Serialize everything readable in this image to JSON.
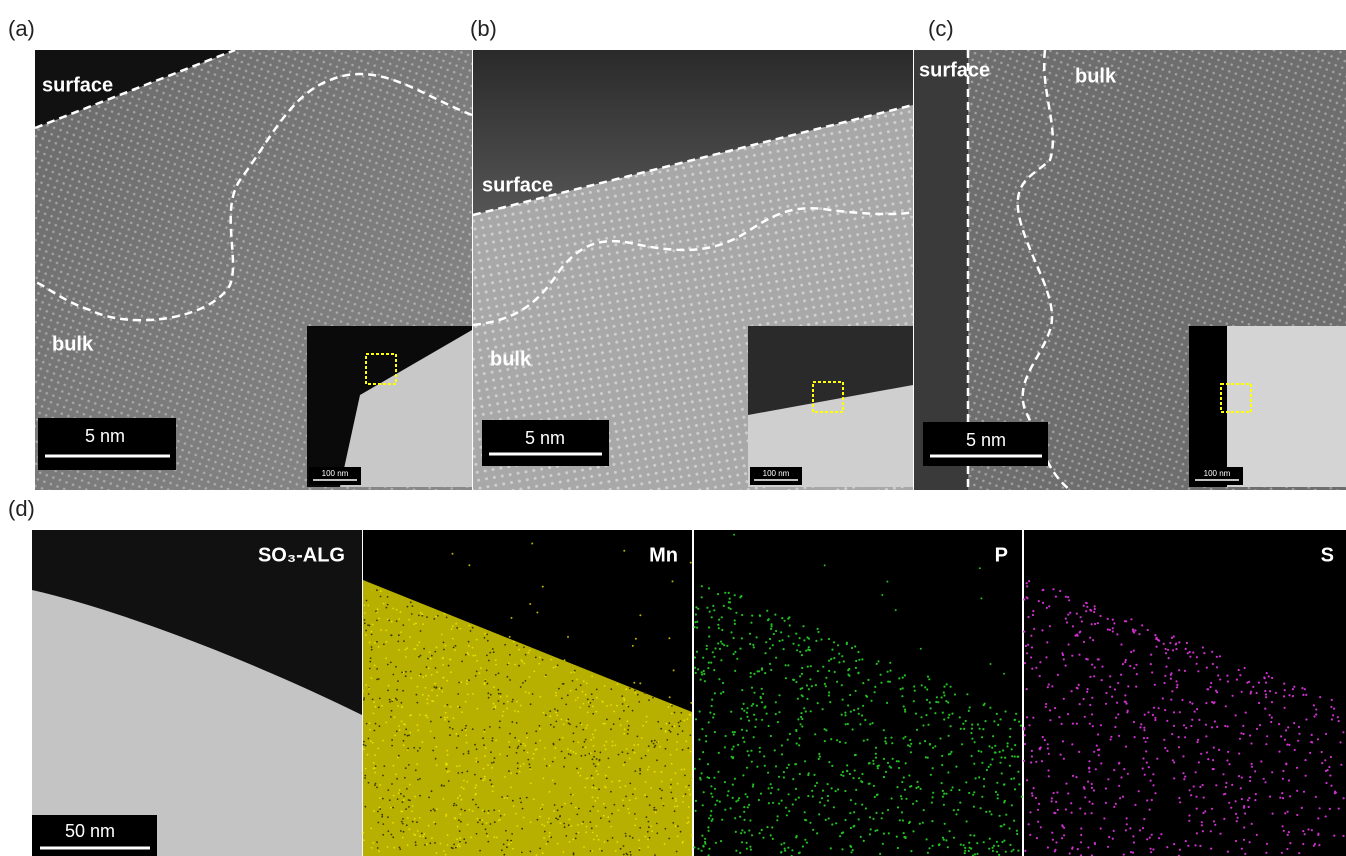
{
  "panels": [
    {
      "label": "(a)",
      "surface": "surface",
      "bulk": "bulk",
      "scale_bar": "5 nm",
      "inset_scale_bar": "100 nm"
    },
    {
      "label": "(b)",
      "surface": "surface",
      "bulk": "bulk",
      "scale_bar": "5 nm",
      "inset_scale_bar": "100 nm"
    },
    {
      "label": "(c)",
      "surface": "surface",
      "bulk": "bulk",
      "scale_bar": "5 nm",
      "inset_scale_bar": "100 nm"
    }
  ],
  "maps": {
    "label": "(d)",
    "scale_bar": "50 nm",
    "titles": [
      "SO₃-ALG",
      "Mn",
      "P",
      "S"
    ]
  }
}
